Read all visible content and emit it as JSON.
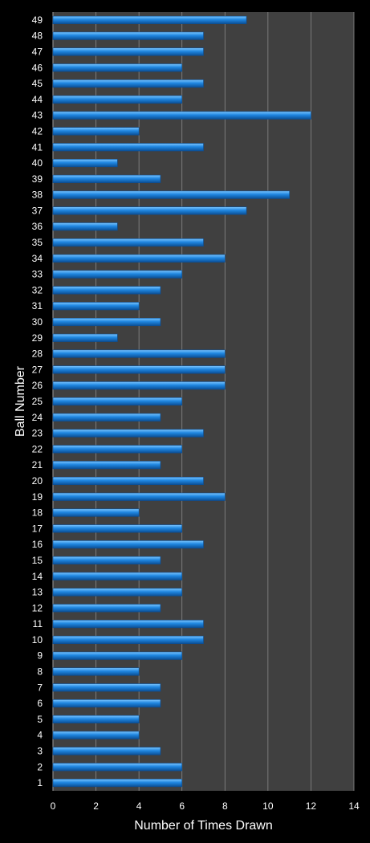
{
  "chart_data": {
    "type": "bar",
    "orientation": "horizontal",
    "title": "",
    "xlabel": "Number of Times Drawn",
    "ylabel": "Ball Number",
    "xlim": [
      0,
      14
    ],
    "xticks": [
      0,
      2,
      4,
      6,
      8,
      10,
      12,
      14
    ],
    "grid": true,
    "legend": "none",
    "categories": [
      "1",
      "2",
      "3",
      "4",
      "5",
      "6",
      "7",
      "8",
      "9",
      "10",
      "11",
      "12",
      "13",
      "14",
      "15",
      "16",
      "17",
      "18",
      "19",
      "20",
      "21",
      "22",
      "23",
      "24",
      "25",
      "26",
      "27",
      "28",
      "29",
      "30",
      "31",
      "32",
      "33",
      "34",
      "35",
      "36",
      "37",
      "38",
      "39",
      "40",
      "41",
      "42",
      "43",
      "44",
      "45",
      "46",
      "47",
      "48",
      "49"
    ],
    "values": [
      6,
      6,
      5,
      4,
      4,
      5,
      5,
      4,
      6,
      7,
      7,
      5,
      6,
      6,
      5,
      7,
      6,
      4,
      8,
      7,
      5,
      6,
      7,
      5,
      6,
      8,
      8,
      8,
      3,
      5,
      4,
      5,
      6,
      8,
      7,
      3,
      9,
      11,
      5,
      3,
      7,
      4,
      12,
      6,
      7,
      6,
      7,
      7,
      9
    ],
    "colors": {
      "bar": "#1f86e0",
      "bar_highlight": "#7cc6ff",
      "bar_shadow": "#0b4f96",
      "plot_background": "#404040",
      "page_background": "#000000",
      "gridline": "#8a8a8a",
      "text": "#ffffff"
    }
  }
}
